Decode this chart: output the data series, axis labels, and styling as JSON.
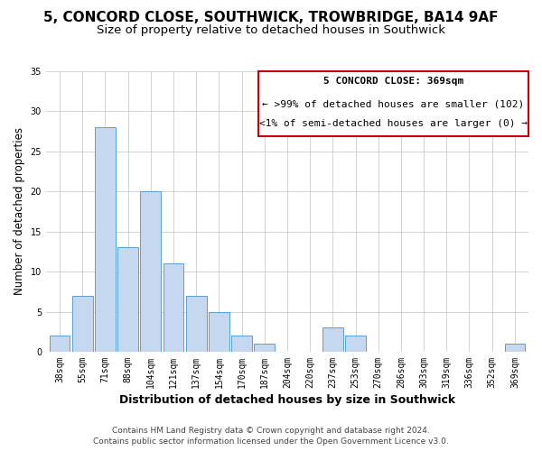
{
  "title": "5, CONCORD CLOSE, SOUTHWICK, TROWBRIDGE, BA14 9AF",
  "subtitle": "Size of property relative to detached houses in Southwick",
  "xlabel": "Distribution of detached houses by size in Southwick",
  "ylabel": "Number of detached properties",
  "categories": [
    "38sqm",
    "55sqm",
    "71sqm",
    "88sqm",
    "104sqm",
    "121sqm",
    "137sqm",
    "154sqm",
    "170sqm",
    "187sqm",
    "204sqm",
    "220sqm",
    "237sqm",
    "253sqm",
    "270sqm",
    "286sqm",
    "303sqm",
    "319sqm",
    "336sqm",
    "352sqm",
    "369sqm"
  ],
  "values": [
    2,
    7,
    28,
    13,
    20,
    11,
    7,
    5,
    2,
    1,
    0,
    0,
    3,
    2,
    0,
    0,
    0,
    0,
    0,
    0,
    1
  ],
  "bar_color": "#c5d8f0",
  "bar_edge_color": "#5a9fd4",
  "annotation_title": "5 CONCORD CLOSE: 369sqm",
  "annotation_line1": "← >99% of detached houses are smaller (102)",
  "annotation_line2": "<1% of semi-detached houses are larger (0) →",
  "annotation_box_edge_color": "#cc0000",
  "ylim": [
    0,
    35
  ],
  "yticks": [
    0,
    5,
    10,
    15,
    20,
    25,
    30,
    35
  ],
  "footer_line1": "Contains HM Land Registry data © Crown copyright and database right 2024.",
  "footer_line2": "Contains public sector information licensed under the Open Government Licence v3.0.",
  "title_fontsize": 11,
  "subtitle_fontsize": 9.5,
  "xlabel_fontsize": 9,
  "ylabel_fontsize": 8.5,
  "tick_fontsize": 7,
  "annotation_fontsize": 8,
  "footer_fontsize": 6.5,
  "background_color": "#ffffff",
  "grid_color": "#cccccc"
}
